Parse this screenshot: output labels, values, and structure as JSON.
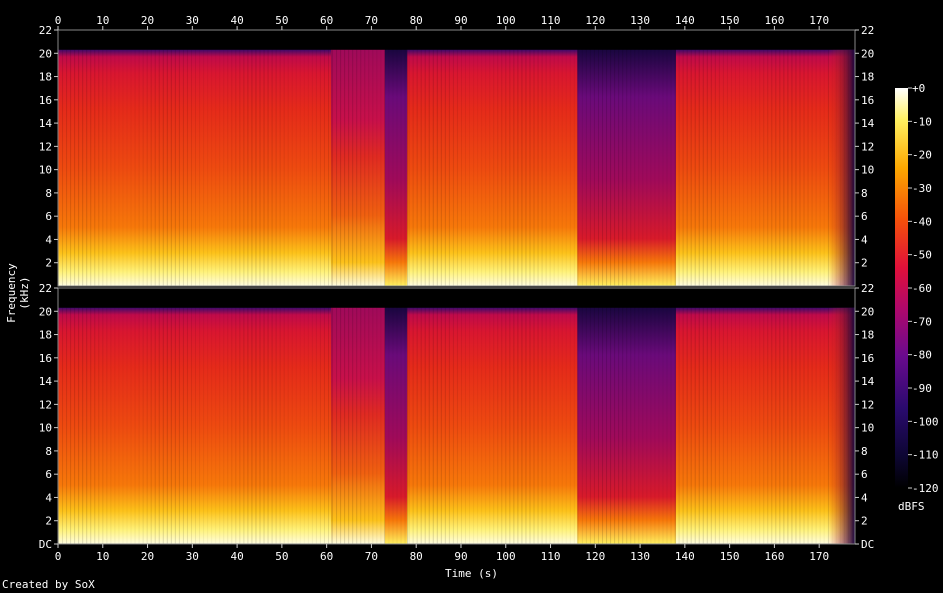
{
  "chart_data": {
    "type": "heatmap",
    "title": "",
    "xlabel": "Time (s)",
    "ylabel": "Frequency (kHz)",
    "x_ticks": [
      0,
      10,
      20,
      30,
      40,
      50,
      60,
      70,
      80,
      90,
      100,
      110,
      120,
      130,
      140,
      150,
      160,
      170
    ],
    "y_ticks_labels": [
      "DC",
      "2",
      "4",
      "6",
      "8",
      "10",
      "12",
      "14",
      "16",
      "18",
      "20",
      "22"
    ],
    "y_ticks_top_channel": [
      "2",
      "4",
      "6",
      "8",
      "10",
      "12",
      "14",
      "16",
      "18",
      "20",
      "22"
    ],
    "xlim": [
      0,
      178
    ],
    "ylim_khz": [
      0,
      22
    ],
    "channels": [
      {
        "name": "",
        "index": 0
      },
      {
        "name": "",
        "index": 1
      }
    ],
    "colorbar": {
      "label": "dBFS",
      "ticks": [
        "+0",
        "-10",
        "-20",
        "-30",
        "-40",
        "-50",
        "-60",
        "-70",
        "-80",
        "-90",
        "-100",
        "-110",
        "-120"
      ],
      "range": [
        -120,
        0
      ]
    },
    "energy_profile": [
      {
        "t0": 0,
        "t1": 61,
        "cutoff_khz": 20.3,
        "level": "hot"
      },
      {
        "t0": 61,
        "t1": 73,
        "cutoff_khz": 20.3,
        "level": "hot_dim_highs"
      },
      {
        "t0": 73,
        "t1": 78,
        "cutoff_khz": 20.3,
        "level": "dip"
      },
      {
        "t0": 78,
        "t1": 116,
        "cutoff_khz": 20.3,
        "level": "hot"
      },
      {
        "t0": 116,
        "t1": 138,
        "cutoff_khz": 20.3,
        "level": "quiet"
      },
      {
        "t0": 138,
        "t1": 172,
        "cutoff_khz": 20.3,
        "level": "hot"
      },
      {
        "t0": 172,
        "t1": 178,
        "cutoff_khz": 20.3,
        "level": "fade"
      }
    ]
  },
  "footer": {
    "credit": "Created by SoX"
  }
}
